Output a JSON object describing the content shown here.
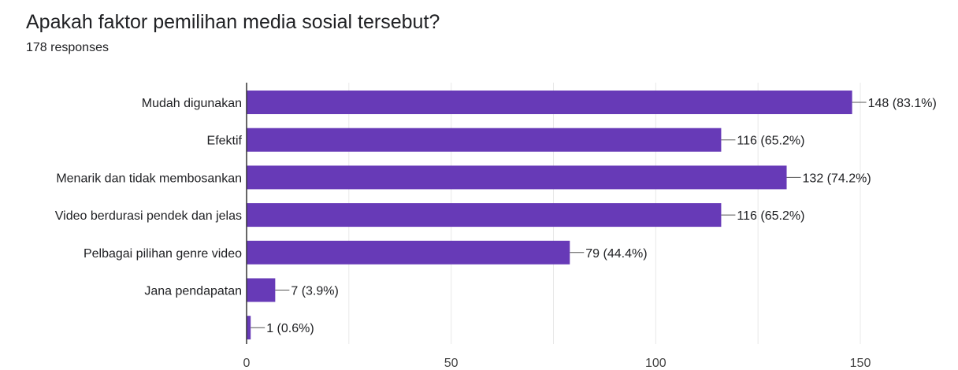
{
  "header": {
    "title": "Apakah faktor pemilihan media sosial tersebut?",
    "responses": "178 responses"
  },
  "colors": {
    "bar": "#673ab7",
    "grid": "#e8e8e8",
    "axis": "#333333",
    "text": "#202124"
  },
  "chart_data": {
    "type": "bar",
    "orientation": "horizontal",
    "title": "Apakah faktor pemilihan media sosial tersebut?",
    "subtitle": "178 responses",
    "categories": [
      "Mudah digunakan",
      "Efektif",
      "Menarik dan tidak membosankan",
      "Video berdurasi pendek dan jelas",
      "Pelbagai pilihan genre video",
      "Jana pendapatan",
      ""
    ],
    "values": [
      148,
      116,
      132,
      116,
      79,
      7,
      1
    ],
    "data_labels": [
      "148 (83.1%)",
      "116 (65.2%)",
      "132 (74.2%)",
      "116 (65.2%)",
      "79 (44.4%)",
      "7 (3.9%)",
      "1 (0.6%)"
    ],
    "xlim": [
      0,
      150
    ],
    "xticks": [
      0,
      50,
      100,
      150
    ],
    "grid": true,
    "legend": "none"
  }
}
